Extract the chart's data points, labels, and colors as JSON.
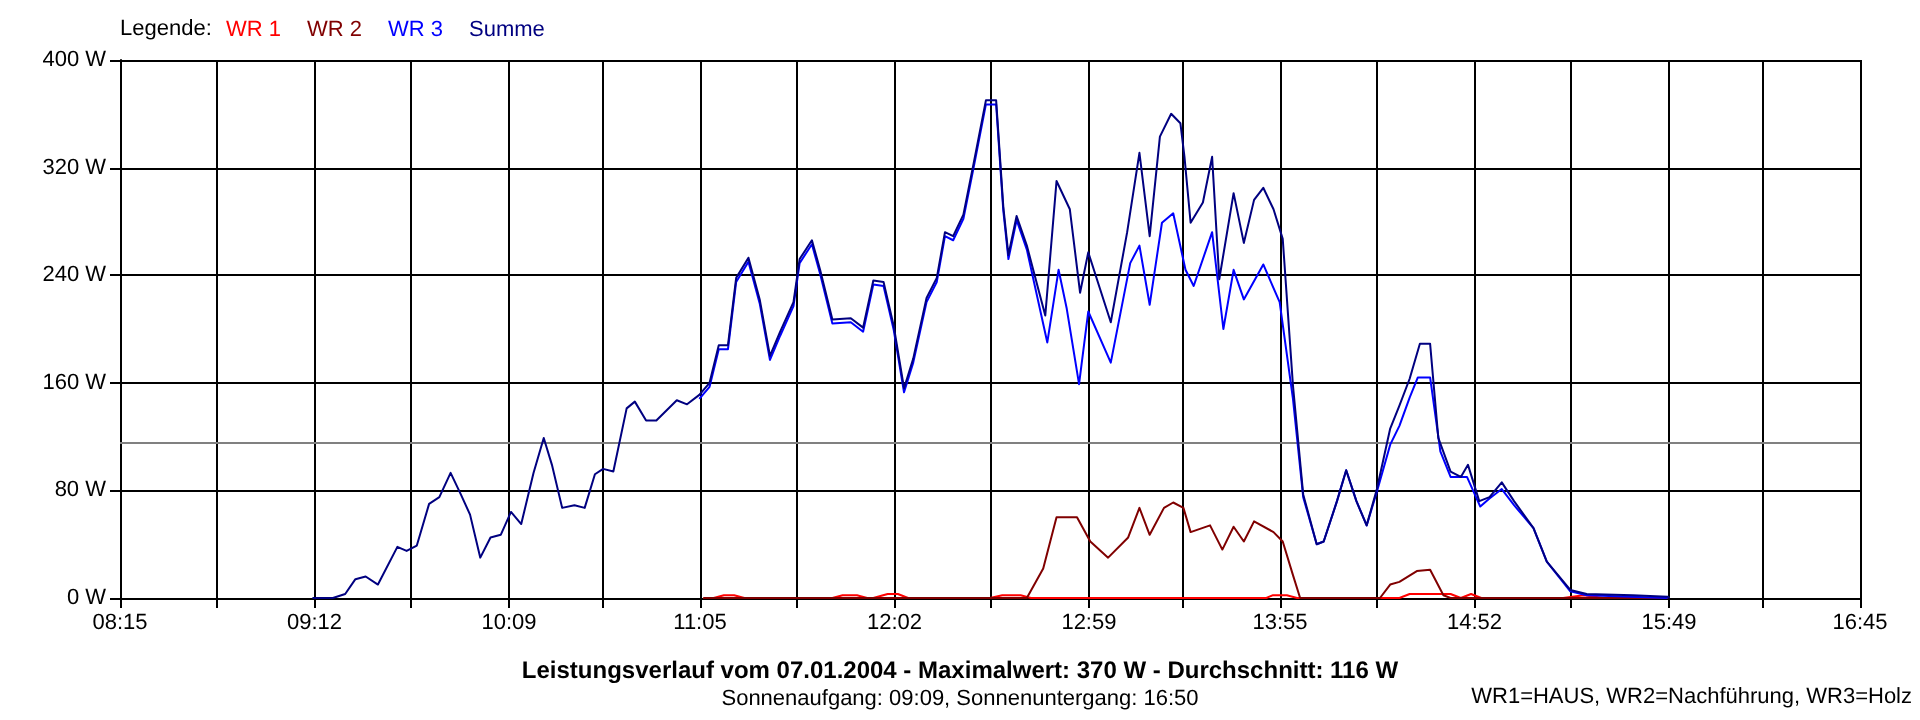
{
  "chart_data": {
    "type": "line",
    "title": "Leistungsverlauf vom 07.01.2004 - Maximalwert: 370 W - Durchschnitt: 116 W",
    "subtitle": "Sonnenaufgang: 09:09, Sonnenuntergang: 16:50",
    "legend_title": "Legende:",
    "annotations": [
      "WR1=HAUS, WR2=Nachführung, WR3=Holz"
    ],
    "xlim": [
      8.25,
      16.75
    ],
    "xticks": [
      {
        "value": 8.25,
        "label": "08:15"
      },
      {
        "value": 8.7222,
        "label": null
      },
      {
        "value": 9.2,
        "label": "09:12"
      },
      {
        "value": 9.6667,
        "label": null
      },
      {
        "value": 10.15,
        "label": "10:09"
      },
      {
        "value": 10.6111,
        "label": null
      },
      {
        "value": 11.0833,
        "label": "11:05"
      },
      {
        "value": 11.5556,
        "label": null
      },
      {
        "value": 12.0333,
        "label": "12:02"
      },
      {
        "value": 12.5,
        "label": null
      },
      {
        "value": 12.9833,
        "label": "12:59"
      },
      {
        "value": 13.4444,
        "label": null
      },
      {
        "value": 13.9167,
        "label": "13:55"
      },
      {
        "value": 14.3889,
        "label": null
      },
      {
        "value": 14.8667,
        "label": "14:52"
      },
      {
        "value": 15.3333,
        "label": null
      },
      {
        "value": 15.8167,
        "label": "15:49"
      },
      {
        "value": 16.2778,
        "label": null
      },
      {
        "value": 16.75,
        "label": "16:45"
      }
    ],
    "ylim": [
      0,
      400
    ],
    "yticks": [
      {
        "value": 0,
        "label": "0 W"
      },
      {
        "value": 80,
        "label": "80 W"
      },
      {
        "value": 160,
        "label": "160 W"
      },
      {
        "value": 240,
        "label": "240 W"
      },
      {
        "value": 320,
        "label": "320 W"
      },
      {
        "value": 400,
        "label": "400 W"
      }
    ],
    "grid": true,
    "legend": "top left",
    "marker": "none",
    "line_style": "solid",
    "ref_lines": [
      {
        "axis": "y",
        "value": 116,
        "color": "#808080"
      }
    ],
    "series": [
      {
        "name": "WR 1",
        "color": "#ff0000",
        "x": [
          11.1,
          11.15,
          11.2,
          11.25,
          11.3,
          11.73,
          11.78,
          11.85,
          11.9,
          11.93,
          12.0,
          12.05,
          12.1,
          12.5,
          12.56,
          12.65,
          12.7,
          13.85,
          13.88,
          13.95,
          14.0,
          14.5,
          14.55,
          14.75,
          14.8,
          14.85,
          14.9,
          15.3,
          15.4,
          15.5,
          15.81
        ],
        "values": [
          0,
          0,
          2,
          2,
          0,
          0,
          2,
          2,
          0,
          0,
          3,
          3,
          0,
          0,
          2,
          2,
          0,
          0,
          2,
          2,
          0,
          0,
          3,
          3,
          0,
          3,
          0,
          0,
          2,
          0,
          0
        ]
      },
      {
        "name": "WR 2",
        "color": "#800000",
        "x": [
          11.1,
          12.68,
          12.76,
          12.825,
          12.925,
          12.99,
          13.077,
          13.175,
          13.23,
          13.28,
          13.35,
          13.395,
          13.445,
          13.48,
          13.575,
          13.635,
          13.69,
          13.74,
          13.79,
          13.885,
          13.93,
          13.98,
          14.015,
          14.405,
          14.455,
          14.5,
          14.585,
          14.65,
          14.715,
          14.75,
          15.81
        ],
        "values": [
          0,
          0,
          22,
          60,
          60,
          42,
          30,
          45,
          67,
          47,
          67,
          71,
          67,
          49,
          54,
          36,
          53,
          42,
          57,
          49,
          42,
          17,
          0,
          0,
          10,
          12,
          20,
          21,
          2,
          0,
          0
        ]
      },
      {
        "name": "WR 3",
        "color": "#0000ff",
        "x": [
          11.08,
          11.13,
          11.175,
          11.22,
          11.26,
          11.32,
          11.375,
          11.425,
          11.475,
          11.54,
          11.57,
          11.63,
          11.67,
          11.73,
          11.82,
          11.88,
          11.93,
          11.98,
          12.03,
          12.08,
          12.125,
          12.19,
          12.24,
          12.28,
          12.32,
          12.37,
          12.42,
          12.48,
          12.53,
          12.565,
          12.59,
          12.63,
          12.68,
          12.78,
          12.835,
          12.875,
          12.935,
          12.98,
          13.09,
          13.185,
          13.23,
          13.28,
          13.34,
          13.395,
          13.455,
          13.495,
          13.585,
          13.64,
          13.69,
          13.74,
          13.835,
          13.915,
          13.98,
          14.03,
          14.096,
          14.13,
          14.195,
          14.24,
          14.29,
          14.34,
          14.39,
          14.455,
          14.5,
          14.55,
          14.59,
          14.65,
          14.7,
          14.75,
          14.83,
          14.895,
          14.94,
          15.0,
          15.06,
          15.155,
          15.22,
          15.335,
          15.415,
          15.81
        ],
        "values": [
          148,
          157,
          185,
          185,
          235,
          250,
          219,
          177,
          195,
          217,
          249,
          263,
          241,
          204,
          205,
          198,
          233,
          232,
          199,
          153,
          175,
          220,
          235,
          269,
          266,
          282,
          320,
          367,
          367,
          288,
          252,
          281,
          259,
          190,
          244,
          215,
          159,
          213,
          175,
          249,
          262,
          218,
          279,
          286,
          244,
          232,
          272,
          200,
          244,
          222,
          248,
          220,
          148,
          75,
          40,
          42,
          72,
          95,
          72,
          54,
          79,
          114,
          128,
          149,
          164,
          164,
          109,
          90,
          90,
          68,
          74,
          81,
          69,
          52,
          27,
          5,
          2,
          0
        ]
      },
      {
        "name": "Summe",
        "color": "#000080",
        "x": [
          9.19,
          9.29,
          9.35,
          9.4,
          9.45,
          9.51,
          9.605,
          9.65,
          9.7,
          9.76,
          9.81,
          9.865,
          9.915,
          9.96,
          10.01,
          10.06,
          10.11,
          10.16,
          10.21,
          10.27,
          10.32,
          10.36,
          10.41,
          10.47,
          10.52,
          10.57,
          10.61,
          10.66,
          10.725,
          10.765,
          10.82,
          10.87,
          10.97,
          11.02,
          11.08,
          11.13,
          11.175,
          11.22,
          11.26,
          11.32,
          11.375,
          11.425,
          11.475,
          11.54,
          11.57,
          11.63,
          11.67,
          11.73,
          11.82,
          11.88,
          11.93,
          11.98,
          12.03,
          12.08,
          12.125,
          12.19,
          12.24,
          12.28,
          12.32,
          12.37,
          12.42,
          12.48,
          12.53,
          12.565,
          12.59,
          12.63,
          12.68,
          12.77,
          12.825,
          12.89,
          12.94,
          12.98,
          13.09,
          13.17,
          13.23,
          13.28,
          13.33,
          13.385,
          13.43,
          13.45,
          13.48,
          13.54,
          13.585,
          13.62,
          13.69,
          13.74,
          13.79,
          13.835,
          13.885,
          13.93,
          13.98,
          14.03,
          14.096,
          14.13,
          14.195,
          14.24,
          14.29,
          14.34,
          14.39,
          14.455,
          14.5,
          14.55,
          14.6,
          14.65,
          14.69,
          14.75,
          14.8,
          14.835,
          14.89,
          14.94,
          15.0,
          15.06,
          15.155,
          15.22,
          15.335,
          15.415,
          15.64,
          15.81,
          15.82
        ],
        "values": [
          0,
          0,
          3,
          14,
          16,
          10,
          38,
          35,
          39,
          70,
          75,
          93,
          77,
          62,
          30,
          45,
          47,
          64,
          55,
          93,
          119,
          99,
          67,
          69,
          67,
          92,
          96,
          94,
          141,
          146,
          132,
          132,
          147,
          144,
          151,
          160,
          188,
          188,
          238,
          253,
          222,
          180,
          198,
          220,
          252,
          266,
          244,
          207,
          208,
          201,
          236,
          235,
          202,
          156,
          178,
          223,
          238,
          272,
          269,
          285,
          323,
          370,
          370,
          291,
          255,
          284,
          262,
          210,
          310,
          289,
          227,
          257,
          205,
          272,
          331,
          269,
          343,
          360,
          353,
          328,
          279,
          294,
          328,
          237,
          301,
          264,
          296,
          305,
          289,
          267,
          158,
          77,
          40,
          42,
          72,
          95,
          72,
          54,
          81,
          126,
          143,
          163,
          189,
          189,
          119,
          94,
          90,
          99,
          72,
          75,
          86,
          72,
          52,
          27,
          6,
          3,
          2,
          1,
          0
        ]
      }
    ]
  }
}
